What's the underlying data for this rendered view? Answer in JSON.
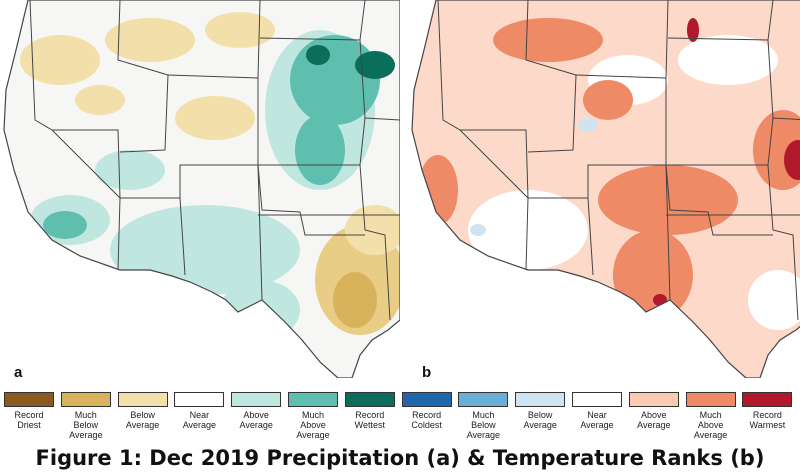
{
  "panels": [
    {
      "label": "a",
      "variable": "Precipitation"
    },
    {
      "label": "b",
      "variable": "Temperature"
    }
  ],
  "legend": [
    {
      "text": "Record\nDriest",
      "color": "#8c5a1e"
    },
    {
      "text": "Much\nBelow\nAverage",
      "color": "#d9b35c"
    },
    {
      "text": "Below\nAverage",
      "color": "#f3dfaa"
    },
    {
      "text": "Near\nAverage",
      "color": "#ffffff"
    },
    {
      "text": "Above\nAverage",
      "color": "#bfe7df"
    },
    {
      "text": "Much\nAbove\nAverage",
      "color": "#5fbfae"
    },
    {
      "text": "Record\nWettest",
      "color": "#0a6e5a"
    },
    {
      "text": "Record\nColdest",
      "color": "#2166ac"
    },
    {
      "text": "Much\nBelow\nAverage",
      "color": "#6aaed6"
    },
    {
      "text": "Below\nAverage",
      "color": "#cfe3f1"
    },
    {
      "text": "Near\nAverage",
      "color": "#ffffff"
    },
    {
      "text": "Above\nAverage",
      "color": "#fbc9b4"
    },
    {
      "text": "Much\nAbove\nAverage",
      "color": "#ee8a65"
    },
    {
      "text": "Record\nWarmest",
      "color": "#b2182b"
    }
  ],
  "caption": "Figure 1: Dec 2019 Precipitation (a) & Temperature Ranks (b)",
  "colors": {
    "outside_region": "#ffffff",
    "border": "#444444"
  }
}
